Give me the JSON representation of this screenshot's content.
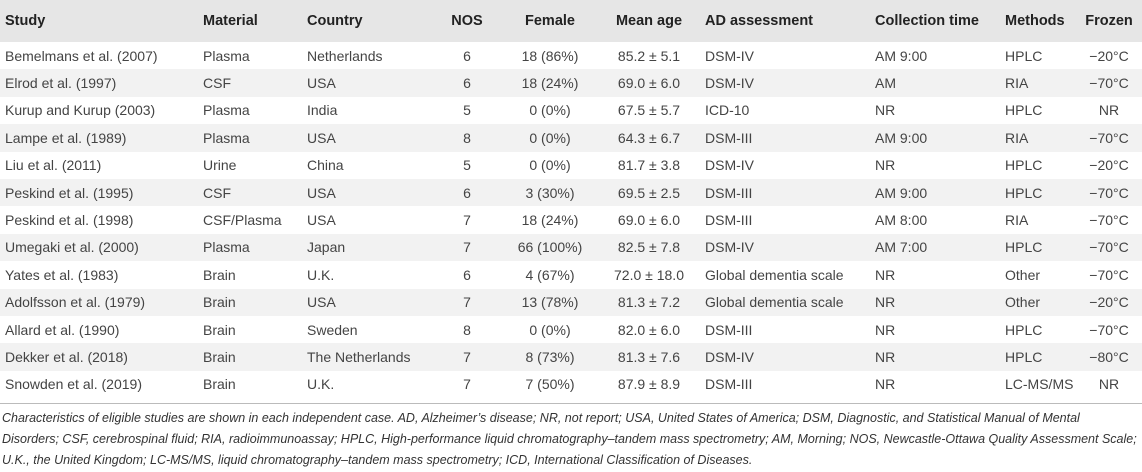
{
  "table": {
    "headers": [
      "Study",
      "Material",
      "Country",
      "NOS",
      "Female",
      "Mean age",
      "AD assessment",
      "Collection time",
      "Methods",
      "Frozen"
    ],
    "rows": [
      [
        "Bemelmans et al. (2007)",
        "Plasma",
        "Netherlands",
        "6",
        "18 (86%)",
        "85.2 ± 5.1",
        "DSM-IV",
        "AM 9:00",
        "HPLC",
        "−20°C"
      ],
      [
        "Elrod et al. (1997)",
        "CSF",
        "USA",
        "6",
        "18 (24%)",
        "69.0 ± 6.0",
        "DSM-IV",
        "AM",
        "RIA",
        "−70°C"
      ],
      [
        "Kurup and Kurup (2003)",
        "Plasma",
        "India",
        "5",
        "0 (0%)",
        "67.5 ± 5.7",
        "ICD-10",
        "NR",
        "HPLC",
        "NR"
      ],
      [
        "Lampe et al. (1989)",
        "Plasma",
        "USA",
        "8",
        "0 (0%)",
        "64.3 ± 6.7",
        "DSM-III",
        "AM 9:00",
        "RIA",
        "−70°C"
      ],
      [
        "Liu et al. (2011)",
        "Urine",
        "China",
        "5",
        "0 (0%)",
        "81.7 ± 3.8",
        "DSM-IV",
        "NR",
        "HPLC",
        "−20°C"
      ],
      [
        "Peskind et al. (1995)",
        "CSF",
        "USA",
        "6",
        "3 (30%)",
        "69.5 ± 2.5",
        "DSM-III",
        "AM 9:00",
        "HPLC",
        "−70°C"
      ],
      [
        "Peskind et al. (1998)",
        "CSF/Plasma",
        "USA",
        "7",
        "18 (24%)",
        "69.0 ± 6.0",
        "DSM-III",
        "AM 8:00",
        "RIA",
        "−70°C"
      ],
      [
        "Umegaki et al. (2000)",
        "Plasma",
        "Japan",
        "7",
        "66 (100%)",
        "82.5 ± 7.8",
        "DSM-IV",
        "AM 7:00",
        "HPLC",
        "−70°C"
      ],
      [
        "Yates et al. (1983)",
        "Brain",
        "U.K.",
        "6",
        "4 (67%)",
        "72.0 ± 18.0",
        "Global dementia scale",
        "NR",
        "Other",
        "−70°C"
      ],
      [
        "Adolfsson et al. (1979)",
        "Brain",
        "USA",
        "7",
        "13 (78%)",
        "81.3 ± 7.2",
        "Global dementia scale",
        "NR",
        "Other",
        "−20°C"
      ],
      [
        "Allard et al. (1990)",
        "Brain",
        "Sweden",
        "8",
        "0 (0%)",
        "82.0 ± 6.0",
        "DSM-III",
        "NR",
        "HPLC",
        "−70°C"
      ],
      [
        "Dekker et al. (2018)",
        "Brain",
        "The Netherlands",
        "7",
        "8 (73%)",
        "81.3 ± 7.6",
        "DSM-IV",
        "NR",
        "HPLC",
        "−80°C"
      ],
      [
        "Snowden et al. (2019)",
        "Brain",
        "U.K.",
        "7",
        "7 (50%)",
        "87.9 ± 8.9",
        "DSM-III",
        "NR",
        "LC-MS/MS",
        "NR"
      ]
    ]
  },
  "footnote": "Characteristics of eligible studies are shown in each independent case. AD, Alzheimer’s disease; NR, not report; USA, United States of America; DSM, Diagnostic, and Statistical Manual of Mental Disorders; CSF, cerebrospinal fluid; RIA, radioimmunoassay; HPLC, High-performance liquid chromatography–tandem mass spectrometry; AM, Morning; NOS, Newcastle-Ottawa Quality Assessment Scale; U.K., the United Kingdom; LC-MS/MS, liquid chromatography–tandem mass spectrometry; ICD, International Classification of Diseases."
}
